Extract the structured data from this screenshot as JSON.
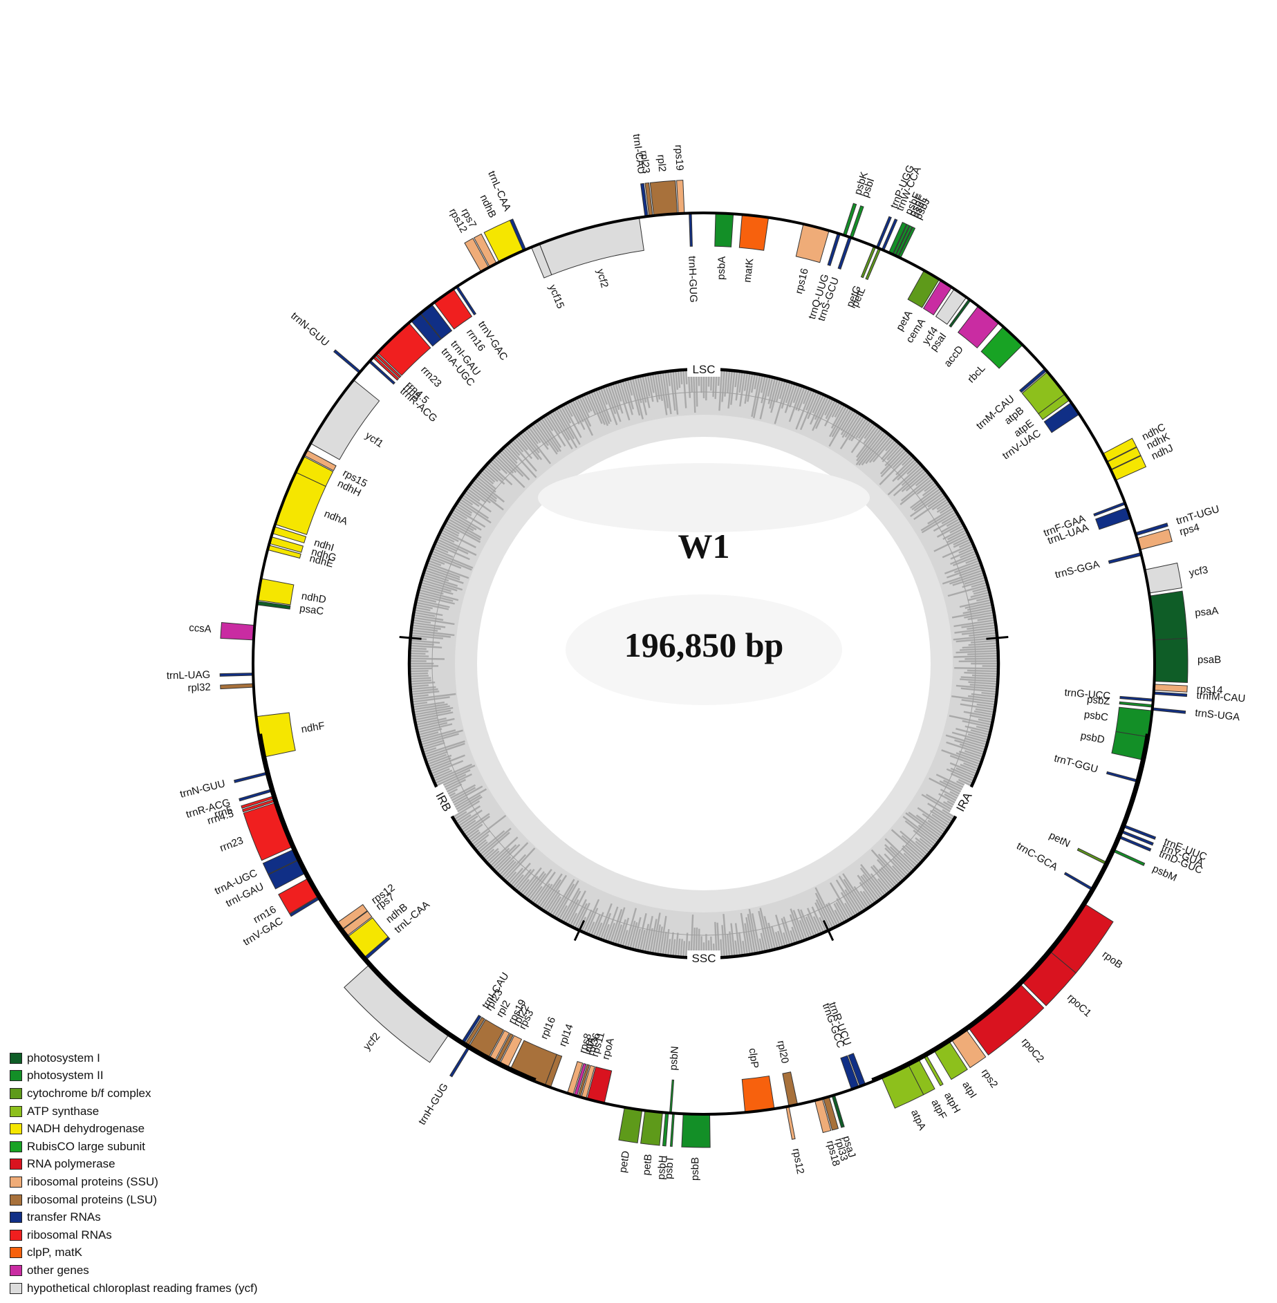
{
  "title": "W1",
  "genome_size": "196,850 bp",
  "regions": [
    {
      "label": "LSC",
      "angle": 0
    },
    {
      "label": "IRA",
      "angle": 118
    },
    {
      "label": "SSC",
      "angle": 180
    },
    {
      "label": "IRB",
      "angle": 242
    }
  ],
  "colors": {
    "photosystem_I": "#0f5d27",
    "photosystem_II": "#138f27",
    "cytochrome": "#5e9a1a",
    "atp": "#8dc01c",
    "ndh": "#f5e600",
    "rubisco": "#18a324",
    "rnapol": "#d9131f",
    "ssu": "#efac78",
    "lsu": "#a8713b",
    "trna": "#102f86",
    "rrna": "#f01f1f",
    "clpmat": "#f7610d",
    "other": "#c92ca2",
    "ycf": "#dcdcdc"
  },
  "legend": [
    {
      "label": "photosystem I",
      "color": "#0f5d27"
    },
    {
      "label": "photosystem II",
      "color": "#138f27"
    },
    {
      "label": "cytochrome b/f complex",
      "color": "#5e9a1a"
    },
    {
      "label": "ATP synthase",
      "color": "#8dc01c"
    },
    {
      "label": "NADH dehydrogenase",
      "color": "#f5e600"
    },
    {
      "label": "RubisCO large subunit",
      "color": "#18a324"
    },
    {
      "label": "RNA polymerase",
      "color": "#d9131f"
    },
    {
      "label": "ribosomal proteins (SSU)",
      "color": "#efac78"
    },
    {
      "label": "ribosomal proteins (LSU)",
      "color": "#a8713b"
    },
    {
      "label": "transfer RNAs",
      "color": "#102f86"
    },
    {
      "label": "ribosomal RNAs",
      "color": "#f01f1f"
    },
    {
      "label": "clpP, matK",
      "color": "#f7610d"
    },
    {
      "label": "other genes",
      "color": "#c92ca2"
    },
    {
      "label": "hypothetical chloroplast reading frames (ycf)",
      "color": "#dcdcdc"
    }
  ],
  "genes": [
    {
      "name": "psbA",
      "start": 2.0,
      "end": 5.0,
      "side": "in",
      "type": "photosystem_II"
    },
    {
      "name": "matK",
      "start": 6.5,
      "end": 11.0,
      "side": "in",
      "type": "clpmat"
    },
    {
      "name": "rps16",
      "start": 17.0,
      "end": 21.5,
      "side": "in",
      "type": "ssu"
    },
    {
      "name": "trnQ-UUG",
      "start": 23.0,
      "end": 23.5,
      "side": "in",
      "type": "trna"
    },
    {
      "name": "trnS-GCU",
      "start": 25.0,
      "end": 25.5,
      "side": "in",
      "type": "trna"
    },
    {
      "name": "psbK",
      "start": 24.0,
      "end": 24.5,
      "side": "out",
      "type": "photosystem_II"
    },
    {
      "name": "psbI",
      "start": 25.2,
      "end": 25.7,
      "side": "out",
      "type": "photosystem_II"
    },
    {
      "name": "petG",
      "start": 29.5,
      "end": 29.9,
      "side": "in",
      "type": "cytochrome"
    },
    {
      "name": "petL",
      "start": 30.4,
      "end": 30.8,
      "side": "in",
      "type": "cytochrome"
    },
    {
      "name": "trnP-UGG",
      "start": 30.0,
      "end": 30.4,
      "side": "out",
      "type": "trna"
    },
    {
      "name": "trnW-CCA",
      "start": 31.0,
      "end": 31.4,
      "side": "out",
      "type": "trna"
    },
    {
      "name": "psbE",
      "start": 32.3,
      "end": 33.0,
      "side": "out",
      "type": "photosystem_II"
    },
    {
      "name": "psbF",
      "start": 33.1,
      "end": 33.5,
      "side": "out",
      "type": "photosystem_II"
    },
    {
      "name": "psbL",
      "start": 33.6,
      "end": 34.0,
      "side": "out",
      "type": "photosystem_II"
    },
    {
      "name": "psbJ",
      "start": 34.1,
      "end": 34.5,
      "side": "out",
      "type": "photosystem_II"
    },
    {
      "name": "petA",
      "start": 39.0,
      "end": 42.0,
      "side": "in",
      "type": "cytochrome"
    },
    {
      "name": "cemA",
      "start": 42.3,
      "end": 44.5,
      "side": "in",
      "type": "other"
    },
    {
      "name": "ycf4",
      "start": 45.0,
      "end": 47.5,
      "side": "in",
      "type": "ycf"
    },
    {
      "name": "psaI",
      "start": 48.0,
      "end": 48.4,
      "side": "in",
      "type": "photosystem_I"
    },
    {
      "name": "accD",
      "start": 50.0,
      "end": 54.5,
      "side": "in",
      "type": "other"
    },
    {
      "name": "rbcL",
      "start": 55.5,
      "end": 60.0,
      "side": "in",
      "type": "rubisco"
    },
    {
      "name": "trnM-CAU",
      "start": 65.5,
      "end": 66.0,
      "side": "in",
      "type": "trna"
    },
    {
      "name": "atpB",
      "start": 66.2,
      "end": 71.0,
      "side": "in",
      "type": "atp"
    },
    {
      "name": "atpE",
      "start": 71.0,
      "end": 72.3,
      "side": "in",
      "type": "atp"
    },
    {
      "name": "trnV-UAC",
      "start": 72.8,
      "end": 75.2,
      "side": "in",
      "type": "trna"
    },
    {
      "name": "ndhC",
      "start": 83.0,
      "end": 84.5,
      "side": "out",
      "type": "ndh"
    },
    {
      "name": "ndhK",
      "start": 84.6,
      "end": 86.0,
      "side": "out",
      "type": "ndh"
    },
    {
      "name": "ndhJ",
      "start": 86.1,
      "end": 88.0,
      "side": "out",
      "type": "ndh"
    },
    {
      "name": "trnF-GAA",
      "start": 92.0,
      "end": 92.4,
      "side": "in",
      "type": "trna"
    },
    {
      "name": "trnL-UAA",
      "start": 93.0,
      "end": 95.0,
      "side": "in",
      "type": "trna"
    },
    {
      "name": "trnT-UGU",
      "start": 97.5,
      "end": 98.0,
      "side": "out",
      "type": "trna"
    },
    {
      "name": "rps4",
      "start": 98.5,
      "end": 100.5,
      "side": "out",
      "type": "ssu"
    },
    {
      "name": "trnS-GGA",
      "start": 101.0,
      "end": 101.5,
      "side": "in",
      "type": "trna"
    },
    {
      "name": "ycf3",
      "start": 104.0,
      "end": 108.0,
      "side": "out",
      "type": "ycf"
    },
    {
      "name": "psaA",
      "start": 108.5,
      "end": 116.0,
      "side": "out",
      "type": "photosystem_I"
    },
    {
      "name": "psaB",
      "start": 116.0,
      "end": 123.0,
      "side": "out",
      "type": "photosystem_I"
    },
    {
      "name": "rps14",
      "start": 123.5,
      "end": 124.5,
      "side": "out",
      "type": "ssu"
    },
    {
      "name": "trnfM-CAU",
      "start": 124.8,
      "end": 125.2,
      "side": "out",
      "type": "trna"
    },
    {
      "name": "trnG-UCC",
      "start": 126.0,
      "end": 126.4,
      "side": "in",
      "type": "trna"
    },
    {
      "name": "psbZ",
      "start": 127.0,
      "end": 127.4,
      "side": "in",
      "type": "photosystem_II"
    },
    {
      "name": "trnS-UGA",
      "start": 127.5,
      "end": 127.9,
      "side": "out",
      "type": "trna"
    },
    {
      "name": "psbC",
      "start": 128.0,
      "end": 132.5,
      "side": "in",
      "type": "photosystem_II"
    },
    {
      "name": "psbD",
      "start": 132.5,
      "end": 136.5,
      "side": "in",
      "type": "photosystem_II"
    },
    {
      "name": "trnT-GGU",
      "start": 140.0,
      "end": 140.4,
      "side": "in",
      "type": "trna"
    },
    {
      "name": "trnE-UUC",
      "start": 148.0,
      "end": 148.4,
      "side": "out",
      "type": "trna"
    },
    {
      "name": "trnY-GUA",
      "start": 149.0,
      "end": 149.4,
      "side": "out",
      "type": "trna"
    },
    {
      "name": "trnD-GUC",
      "start": 150.0,
      "end": 150.4,
      "side": "out",
      "type": "trna"
    },
    {
      "name": "psbM",
      "start": 152.5,
      "end": 152.9,
      "side": "out",
      "type": "photosystem_II"
    },
    {
      "name": "petN",
      "start": 155.0,
      "end": 155.4,
      "side": "in",
      "type": "cytochrome"
    },
    {
      "name": "trnC-GCA",
      "start": 160.0,
      "end": 160.4,
      "side": "in",
      "type": "trna"
    },
    {
      "name": "rpoB",
      "start": 163.0,
      "end": 173.0,
      "side": "out",
      "type": "rnapol"
    },
    {
      "name": "rpoC1",
      "start": 173.0,
      "end": 180.0,
      "side": "out",
      "type": "rnapol"
    },
    {
      "name": "rpoC2",
      "start": 180.5,
      "end": 192.0,
      "side": "out",
      "type": "rnapol"
    },
    {
      "name": "rps2",
      "start": 192.5,
      "end": 195.5,
      "side": "out",
      "type": "ssu"
    },
    {
      "name": "atpI",
      "start": 196.0,
      "end": 199.0,
      "side": "out",
      "type": "atp"
    },
    {
      "name": "atpH",
      "start": 200.5,
      "end": 201.0,
      "side": "out",
      "type": "atp"
    },
    {
      "name": "atpF",
      "start": 202.0,
      "end": 204.0,
      "side": "out",
      "type": "atp"
    },
    {
      "name": "atpA",
      "start": 204.0,
      "end": 209.0,
      "side": "out",
      "type": "atp"
    },
    {
      "name": "trnR-UCU",
      "start": 212.0,
      "end": 213.0,
      "side": "in",
      "type": "trna"
    },
    {
      "name": "trnG-GCC",
      "start": 213.2,
      "end": 214.5,
      "side": "in",
      "type": "trna"
    },
    {
      "name": "psaJ",
      "start": 217.5,
      "end": 218.0,
      "side": "out",
      "type": "photosystem_I"
    },
    {
      "name": "rpl33",
      "start": 218.5,
      "end": 219.5,
      "side": "out",
      "type": "lsu"
    },
    {
      "name": "rps18",
      "start": 219.7,
      "end": 221.0,
      "side": "out",
      "type": "ssu"
    },
    {
      "name": "rpl20",
      "start": 224.0,
      "end": 225.5,
      "side": "in",
      "type": "lsu"
    },
    {
      "name": "rps12",
      "start": 225.5,
      "end": 226.0,
      "side": "out",
      "type": "ssu"
    },
    {
      "name": "clpP",
      "start": 228.0,
      "end": 233.0,
      "side": "in",
      "type": "clpmat"
    },
    {
      "name": "psbB",
      "start": 239.0,
      "end": 243.5,
      "side": "out",
      "type": "photosystem_II"
    },
    {
      "name": "psbT",
      "start": 245.0,
      "end": 245.3,
      "side": "out",
      "type": "photosystem_II"
    },
    {
      "name": "psbN",
      "start": 245.5,
      "end": 245.8,
      "side": "in",
      "type": "photosystem_II"
    },
    {
      "name": "psbH",
      "start": 246.0,
      "end": 246.5,
      "side": "out",
      "type": "photosystem_II"
    },
    {
      "name": "petB",
      "start": 247.0,
      "end": 250.0,
      "side": "out",
      "type": "cytochrome"
    },
    {
      "name": "petD",
      "start": 250.5,
      "end": 253.5,
      "side": "out",
      "type": "cytochrome"
    },
    {
      "name": "rpoA",
      "start": 257.0,
      "end": 260.0,
      "side": "in",
      "type": "rnapol"
    },
    {
      "name": "rps11",
      "start": 260.2,
      "end": 261.0,
      "side": "in",
      "type": "ssu"
    },
    {
      "name": "rpl36",
      "start": 261.2,
      "end": 261.6,
      "side": "in",
      "type": "lsu"
    },
    {
      "name": "infA",
      "start": 261.8,
      "end": 262.3,
      "side": "in",
      "type": "other"
    },
    {
      "name": "rps8",
      "start": 262.5,
      "end": 263.5,
      "side": "in",
      "type": "ssu"
    },
    {
      "name": "rpl14",
      "start": 266.5,
      "end": 267.5,
      "side": "in",
      "type": "lsu"
    },
    {
      "name": "rpl16",
      "start": 267.5,
      "end": 274.0,
      "side": "in",
      "type": "lsu"
    },
    {
      "name": "rps3",
      "start": 274.5,
      "end": 276.0,
      "side": "in",
      "type": "ssu"
    },
    {
      "name": "rpl22",
      "start": 276.2,
      "end": 276.8,
      "side": "in",
      "type": "lsu"
    },
    {
      "name": "rps19",
      "start": 277.0,
      "end": 278.0,
      "side": "in",
      "type": "ssu"
    },
    {
      "name": "rpl2",
      "start": 278.2,
      "end": 282.0,
      "side": "in",
      "type": "lsu"
    },
    {
      "name": "rpl23",
      "start": 282.2,
      "end": 282.8,
      "side": "in",
      "type": "lsu"
    },
    {
      "name": "trnI-CAU",
      "start": 283.0,
      "end": 283.5,
      "side": "in",
      "type": "trna"
    },
    {
      "name": "trnH-GUG",
      "start": 281.8,
      "end": 282.2,
      "side": "out",
      "type": "trna"
    },
    {
      "name": "ycf2",
      "start": 286.0,
      "end": 304.0,
      "side": "out",
      "type": "ycf"
    },
    {
      "name": "trnL-CAA",
      "start": 305.0,
      "end": 305.5,
      "side": "in",
      "type": "trna"
    },
    {
      "name": "ndhB",
      "start": 305.5,
      "end": 310.0,
      "side": "in",
      "type": "ndh"
    },
    {
      "name": "rps7",
      "start": 310.2,
      "end": 311.5,
      "side": "in",
      "type": "ssu"
    },
    {
      "name": "rps12",
      "start": 311.6,
      "end": 313.0,
      "side": "in",
      "type": "ssu"
    },
    {
      "name": "trnV-GAC",
      "start": 318.0,
      "end": 318.4,
      "side": "out",
      "type": "trna"
    },
    {
      "name": "rrn16",
      "start": 318.5,
      "end": 322.0,
      "side": "out",
      "type": "rrna"
    },
    {
      "name": "trnI-GAU",
      "start": 323.0,
      "end": 325.5,
      "side": "out",
      "type": "trna"
    },
    {
      "name": "trnA-UGC",
      "start": 325.6,
      "end": 327.5,
      "side": "out",
      "type": "trna"
    },
    {
      "name": "rrn23",
      "start": 328.0,
      "end": 336.0,
      "side": "out",
      "type": "rrna"
    },
    {
      "name": "rrn4.5",
      "start": 336.2,
      "end": 336.6,
      "side": "out",
      "type": "rrna"
    },
    {
      "name": "rrn5",
      "start": 336.8,
      "end": 337.2,
      "side": "out",
      "type": "rrna"
    },
    {
      "name": "trnR-ACG",
      "start": 338.0,
      "end": 338.4,
      "side": "out",
      "type": "trna"
    },
    {
      "name": "trnN-GUU",
      "start": 341.0,
      "end": 341.4,
      "side": "out",
      "type": "trna"
    },
    {
      "name": "ndhF",
      "start": 344.0,
      "end": 351.0,
      "side": "in",
      "type": "ndh"
    },
    {
      "name": "rpl32",
      "start": 356.0,
      "end": 356.6,
      "side": "out",
      "type": "lsu"
    },
    {
      "name": "trnL-UAG",
      "start": 358.0,
      "end": 358.4,
      "side": "out",
      "type": "trna"
    },
    {
      "name": "ccsA",
      "start": 364.0,
      "end": 366.5,
      "side": "out",
      "type": "other"
    }
  ],
  "genes_ssc": [
    {
      "name": "psaC",
      "start": 370.0,
      "end": 370.6,
      "side": "in",
      "type": "photosystem_I"
    },
    {
      "name": "ndhD",
      "start": 370.8,
      "end": 374.5,
      "side": "in",
      "type": "ndh"
    },
    {
      "name": "ndhE",
      "start": 379.5,
      "end": 380.3,
      "side": "in",
      "type": "ndh"
    },
    {
      "name": "ndhG",
      "start": 380.6,
      "end": 381.8,
      "side": "in",
      "type": "ndh"
    },
    {
      "name": "ndhI",
      "start": 382.4,
      "end": 383.6,
      "side": "in",
      "type": "ndh"
    },
    {
      "name": "ndhA",
      "start": 384.0,
      "end": 393.5,
      "side": "in",
      "type": "ndh"
    },
    {
      "name": "ndhH",
      "start": 393.5,
      "end": 396.5,
      "side": "in",
      "type": "ndh"
    },
    {
      "name": "rps15",
      "start": 396.7,
      "end": 397.7,
      "side": "in",
      "type": "ssu"
    },
    {
      "name": "ycf1",
      "start": 399.0,
      "end": 412.0,
      "side": "in",
      "type": "ycf"
    },
    {
      "name": "trnN-GUU",
      "start": 413.5,
      "end": 413.9,
      "side": "out",
      "type": "trna"
    },
    {
      "name": "trnR-ACG",
      "start": 416.0,
      "end": 416.4,
      "side": "in",
      "type": "trna"
    },
    {
      "name": "rrn5",
      "start": 417.0,
      "end": 417.4,
      "side": "in",
      "type": "rrna"
    },
    {
      "name": "rrn4.5",
      "start": 417.6,
      "end": 418.0,
      "side": "in",
      "type": "rrna"
    },
    {
      "name": "rrn23",
      "start": 418.2,
      "end": 425.5,
      "side": "in",
      "type": "rrna"
    },
    {
      "name": "trnA-UGC",
      "start": 426.0,
      "end": 428.0,
      "side": "in",
      "type": "trna"
    },
    {
      "name": "trnI-GAU",
      "start": 428.1,
      "end": 430.5,
      "side": "in",
      "type": "trna"
    },
    {
      "name": "rrn16",
      "start": 431.0,
      "end": 435.0,
      "side": "in",
      "type": "rrna"
    },
    {
      "name": "trnV-GAC",
      "start": 435.5,
      "end": 435.9,
      "side": "in",
      "type": "trna"
    },
    {
      "name": "rps12",
      "start": 440.5,
      "end": 442.0,
      "side": "out",
      "type": "ssu"
    },
    {
      "name": "rps7",
      "start": 442.2,
      "end": 443.5,
      "side": "out",
      "type": "ssu"
    },
    {
      "name": "ndhB",
      "start": 444.0,
      "end": 448.5,
      "side": "out",
      "type": "ndh"
    },
    {
      "name": "trnL-CAA",
      "start": 448.5,
      "end": 449.0,
      "side": "out",
      "type": "trna"
    },
    {
      "name": "ycf15",
      "start": 450.0,
      "end": 451.5,
      "side": "in",
      "type": "ycf"
    },
    {
      "name": "ycf2",
      "start": 451.5,
      "end": 469.0,
      "side": "in",
      "type": "ycf"
    },
    {
      "name": "trnI-CAU",
      "start": 470.0,
      "end": 470.5,
      "side": "out",
      "type": "trna"
    },
    {
      "name": "rpl23",
      "start": 470.7,
      "end": 471.3,
      "side": "out",
      "type": "lsu"
    },
    {
      "name": "rpl2",
      "start": 471.5,
      "end": 475.5,
      "side": "out",
      "type": "lsu"
    },
    {
      "name": "rps19",
      "start": 475.7,
      "end": 476.7,
      "side": "out",
      "type": "ssu"
    },
    {
      "name": "trnH-GUG",
      "start": 477.5,
      "end": 477.9,
      "side": "in",
      "type": "trna"
    }
  ]
}
